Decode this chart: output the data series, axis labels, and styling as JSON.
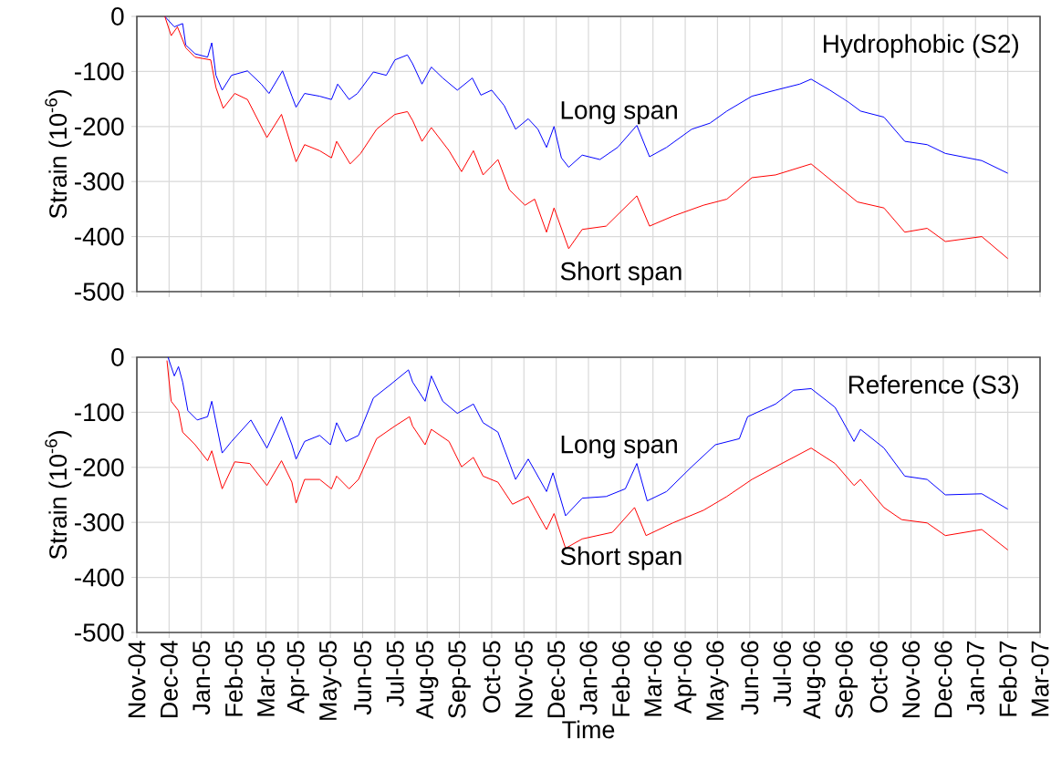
{
  "chart_data": [
    {
      "type": "line",
      "title": "Hydrophobic (S2)",
      "ylabel": "Strain (10$^{-6}$)",
      "xlim": [
        "2004-11",
        "2007-03"
      ],
      "ylim": [
        -500,
        0
      ],
      "yticks": [
        -500,
        -400,
        -300,
        -200,
        -100,
        0
      ],
      "xticks": [
        {
          "value": "2004-11",
          "label": null
        },
        {
          "value": "2004-12",
          "label": null
        },
        {
          "value": "2005-01",
          "label": null
        },
        {
          "value": "2005-02",
          "label": null
        },
        {
          "value": "2005-03",
          "label": null
        },
        {
          "value": "2005-04",
          "label": null
        },
        {
          "value": "2005-05",
          "label": null
        },
        {
          "value": "2005-06",
          "label": null
        },
        {
          "value": "2005-07",
          "label": null
        },
        {
          "value": "2005-08",
          "label": null
        },
        {
          "value": "2005-09",
          "label": null
        },
        {
          "value": "2005-10",
          "label": null
        },
        {
          "value": "2005-11",
          "label": null
        },
        {
          "value": "2005-12",
          "label": null
        },
        {
          "value": "2006-01",
          "label": null
        },
        {
          "value": "2006-02",
          "label": null
        },
        {
          "value": "2006-03",
          "label": null
        },
        {
          "value": "2006-04",
          "label": null
        },
        {
          "value": "2006-05",
          "label": null
        },
        {
          "value": "2006-06",
          "label": null
        },
        {
          "value": "2006-07",
          "label": null
        },
        {
          "value": "2006-08",
          "label": null
        },
        {
          "value": "2006-09",
          "label": null
        },
        {
          "value": "2006-10",
          "label": null
        },
        {
          "value": "2006-11",
          "label": null
        },
        {
          "value": "2006-12",
          "label": null
        },
        {
          "value": "2007-01",
          "label": null
        },
        {
          "value": "2007-02",
          "label": null
        },
        {
          "value": "2007-03",
          "label": null
        }
      ],
      "tick_labels": "y",
      "grid": true,
      "marker": "none",
      "line_style": "solid",
      "series": [
        {
          "name": "Long span",
          "color": "#0000ff",
          "x": [
            "2004-11-27",
            "2004-12-06",
            "2004-12-14",
            "2004-12-17",
            "2004-12-26",
            "2005-01-07",
            "2005-01-11",
            "2005-01-15",
            "2005-01-21",
            "2005-01-30",
            "2005-02-13",
            "2005-02-25",
            "2005-03-04",
            "2005-03-17",
            "2005-03-26",
            "2005-03-30",
            "2005-04-07",
            "2005-04-21",
            "2005-05-02",
            "2005-05-08",
            "2005-05-19",
            "2005-05-27",
            "2005-06-11",
            "2005-06-23",
            "2005-07-01",
            "2005-07-13",
            "2005-07-18",
            "2005-07-27",
            "2005-08-05",
            "2005-08-16",
            "2005-08-30",
            "2005-09-13",
            "2005-09-21",
            "2005-10-01",
            "2005-10-13",
            "2005-10-24",
            "2005-11-05",
            "2005-11-14",
            "2005-11-22",
            "2005-11-29",
            "2005-12-06",
            "2005-12-13",
            "2005-12-26",
            "2006-01-12",
            "2006-01-29",
            "2006-02-15",
            "2006-02-26",
            "2006-03-14",
            "2006-04-07",
            "2006-04-24",
            "2006-05-10",
            "2006-06-03",
            "2006-06-25",
            "2006-07-18",
            "2006-07-29",
            "2006-08-16",
            "2006-09-03",
            "2006-09-14",
            "2006-10-06",
            "2006-10-26",
            "2006-11-16",
            "2006-12-03",
            "2007-01-07",
            "2007-02-01"
          ],
          "values": [
            0,
            -19,
            -13,
            -52,
            -68,
            -74,
            -48,
            -107,
            -134,
            -107,
            -99,
            -123,
            -140,
            -99,
            -145,
            -165,
            -140,
            -145,
            -151,
            -123,
            -151,
            -140,
            -101,
            -107,
            -79,
            -70,
            -86,
            -123,
            -92,
            -112,
            -134,
            -112,
            -143,
            -134,
            -162,
            -205,
            -186,
            -205,
            -238,
            -200,
            -257,
            -274,
            -252,
            -260,
            -238,
            -198,
            -255,
            -238,
            -205,
            -194,
            -172,
            -145,
            -134,
            -123,
            -114,
            -134,
            -156,
            -172,
            -183,
            -227,
            -233,
            -249,
            -262,
            -285
          ]
        },
        {
          "name": "Short span",
          "color": "#ff0000",
          "x": [
            "2004-11-27",
            "2004-12-03",
            "2004-12-09",
            "2004-12-17",
            "2004-12-26",
            "2005-01-10",
            "2005-01-15",
            "2005-01-22",
            "2005-02-02",
            "2005-02-13",
            "2005-03-02",
            "2005-03-16",
            "2005-03-24",
            "2005-03-30",
            "2005-04-07",
            "2005-04-21",
            "2005-05-02",
            "2005-05-07",
            "2005-05-20",
            "2005-05-30",
            "2005-06-14",
            "2005-07-01",
            "2005-07-13",
            "2005-07-18",
            "2005-07-27",
            "2005-08-05",
            "2005-08-22",
            "2005-09-03",
            "2005-09-14",
            "2005-09-23",
            "2005-10-07",
            "2005-10-18",
            "2005-11-02",
            "2005-11-11",
            "2005-11-22",
            "2005-11-29",
            "2005-12-13",
            "2005-12-26",
            "2006-01-18",
            "2006-02-15",
            "2006-02-26",
            "2006-03-20",
            "2006-04-18",
            "2006-05-10",
            "2006-06-03",
            "2006-06-25",
            "2006-07-29",
            "2006-08-18",
            "2006-09-11",
            "2006-10-06",
            "2006-10-26",
            "2006-11-16",
            "2006-12-03",
            "2007-01-07",
            "2007-02-01"
          ],
          "values": [
            0,
            -35,
            -19,
            -57,
            -74,
            -79,
            -129,
            -167,
            -140,
            -151,
            -220,
            -178,
            -227,
            -264,
            -233,
            -244,
            -257,
            -227,
            -268,
            -249,
            -205,
            -178,
            -173,
            -189,
            -227,
            -202,
            -244,
            -282,
            -244,
            -288,
            -260,
            -315,
            -343,
            -332,
            -392,
            -348,
            -422,
            -387,
            -381,
            -326,
            -381,
            -363,
            -343,
            -332,
            -293,
            -288,
            -268,
            -299,
            -337,
            -348,
            -392,
            -385,
            -409,
            -400,
            -440
          ]
        }
      ]
    },
    {
      "type": "line",
      "title": "Reference (S3)",
      "xlabel": "Time",
      "ylabel": "Strain (10$^{-6}$)",
      "xlim": [
        "2004-11",
        "2007-03"
      ],
      "ylim": [
        -500,
        0
      ],
      "yticks": [
        -500,
        -400,
        -300,
        -200,
        -100,
        0
      ],
      "xticks": [
        {
          "value": "2004-11",
          "label": "Nov-04"
        },
        {
          "value": "2004-12",
          "label": "Dec-04"
        },
        {
          "value": "2005-01",
          "label": "Jan-05"
        },
        {
          "value": "2005-02",
          "label": "Feb-05"
        },
        {
          "value": "2005-03",
          "label": "Mar-05"
        },
        {
          "value": "2005-04",
          "label": "Apr-05"
        },
        {
          "value": "2005-05",
          "label": "May-05"
        },
        {
          "value": "2005-06",
          "label": "Jun-05"
        },
        {
          "value": "2005-07",
          "label": "Jul-05"
        },
        {
          "value": "2005-08",
          "label": "Aug-05"
        },
        {
          "value": "2005-09",
          "label": "Sep-05"
        },
        {
          "value": "2005-10",
          "label": "Oct-05"
        },
        {
          "value": "2005-11",
          "label": "Nov-05"
        },
        {
          "value": "2005-12",
          "label": "Dec-05"
        },
        {
          "value": "2006-01",
          "label": "Jan-06"
        },
        {
          "value": "2006-02",
          "label": "Feb-06"
        },
        {
          "value": "2006-03",
          "label": "Mar-06"
        },
        {
          "value": "2006-04",
          "label": "Apr-06"
        },
        {
          "value": "2006-05",
          "label": "May-06"
        },
        {
          "value": "2006-06",
          "label": "Jun-06"
        },
        {
          "value": "2006-07",
          "label": "Jul-06"
        },
        {
          "value": "2006-08",
          "label": "Aug-06"
        },
        {
          "value": "2006-09",
          "label": "Sep-06"
        },
        {
          "value": "2006-10",
          "label": "Oct-06"
        },
        {
          "value": "2006-11",
          "label": "Nov-06"
        },
        {
          "value": "2006-12",
          "label": "Dec-06"
        },
        {
          "value": "2007-01",
          "label": "Jan-07"
        },
        {
          "value": "2007-02",
          "label": "Feb-07"
        },
        {
          "value": "2007-03",
          "label": "Mar-07"
        }
      ],
      "grid": true,
      "marker": "none",
      "line_style": "solid",
      "series": [
        {
          "name": "Long span",
          "color": "#0000ff",
          "x": [
            "2004-11-30",
            "2004-12-06",
            "2004-12-10",
            "2004-12-14",
            "2004-12-19",
            "2004-12-28",
            "2005-01-07",
            "2005-01-11",
            "2005-01-21",
            "2005-01-30",
            "2005-02-16",
            "2005-03-02",
            "2005-03-16",
            "2005-03-26",
            "2005-03-30",
            "2005-04-07",
            "2005-04-21",
            "2005-05-01",
            "2005-05-07",
            "2005-05-16",
            "2005-05-28",
            "2005-06-11",
            "2005-06-26",
            "2005-07-14",
            "2005-07-18",
            "2005-07-30",
            "2005-08-05",
            "2005-08-16",
            "2005-08-30",
            "2005-09-14",
            "2005-09-23",
            "2005-10-07",
            "2005-10-24",
            "2005-11-05",
            "2005-11-22",
            "2005-11-28",
            "2005-12-10",
            "2005-12-26",
            "2006-01-18",
            "2006-02-05",
            "2006-02-15",
            "2006-02-24",
            "2006-03-14",
            "2006-04-07",
            "2006-04-29",
            "2006-05-22",
            "2006-05-30",
            "2006-06-25",
            "2006-07-12",
            "2006-07-29",
            "2006-08-21",
            "2006-09-08",
            "2006-09-14",
            "2006-10-06",
            "2006-10-26",
            "2006-11-16",
            "2006-12-03",
            "2007-01-07",
            "2007-02-01"
          ],
          "values": [
            0,
            -34,
            -17,
            -45,
            -97,
            -114,
            -108,
            -80,
            -174,
            -153,
            -114,
            -165,
            -108,
            -159,
            -185,
            -153,
            -142,
            -159,
            -119,
            -153,
            -142,
            -74,
            -51,
            -23,
            -45,
            -80,
            -34,
            -80,
            -102,
            -85,
            -119,
            -136,
            -222,
            -185,
            -244,
            -210,
            -288,
            -256,
            -253,
            -239,
            -193,
            -261,
            -244,
            -199,
            -159,
            -148,
            -108,
            -85,
            -60,
            -57,
            -91,
            -153,
            -131,
            -165,
            -216,
            -222,
            -250,
            -248,
            -276
          ]
        },
        {
          "name": "Short span",
          "color": "#ff0000",
          "x": [
            "2004-11-29",
            "2004-12-03",
            "2004-12-10",
            "2004-12-14",
            "2004-12-26",
            "2005-01-07",
            "2005-01-11",
            "2005-01-21",
            "2005-02-02",
            "2005-02-15",
            "2005-03-02",
            "2005-03-16",
            "2005-03-26",
            "2005-03-30",
            "2005-04-07",
            "2005-04-21",
            "2005-05-02",
            "2005-05-07",
            "2005-05-19",
            "2005-05-28",
            "2005-06-14",
            "2005-07-01",
            "2005-07-15",
            "2005-07-18",
            "2005-07-30",
            "2005-08-05",
            "2005-08-22",
            "2005-09-03",
            "2005-09-14",
            "2005-09-23",
            "2005-10-07",
            "2005-10-21",
            "2005-11-05",
            "2005-11-22",
            "2005-11-29",
            "2005-12-10",
            "2005-12-26",
            "2006-01-24",
            "2006-02-13",
            "2006-02-23",
            "2006-03-20",
            "2006-04-18",
            "2006-05-10",
            "2006-06-03",
            "2006-06-25",
            "2006-07-29",
            "2006-08-21",
            "2006-09-08",
            "2006-09-14",
            "2006-10-06",
            "2006-10-23",
            "2006-11-16",
            "2006-12-03",
            "2007-01-07",
            "2007-02-01"
          ],
          "values": [
            -6,
            -80,
            -97,
            -136,
            -159,
            -188,
            -170,
            -239,
            -190,
            -193,
            -233,
            -188,
            -227,
            -265,
            -222,
            -222,
            -239,
            -216,
            -239,
            -222,
            -148,
            -125,
            -108,
            -125,
            -159,
            -131,
            -153,
            -199,
            -182,
            -216,
            -227,
            -267,
            -253,
            -313,
            -284,
            -347,
            -330,
            -318,
            -273,
            -324,
            -301,
            -278,
            -253,
            -222,
            -199,
            -165,
            -193,
            -233,
            -222,
            -273,
            -295,
            -301,
            -324,
            -313,
            -350
          ]
        }
      ]
    }
  ]
}
